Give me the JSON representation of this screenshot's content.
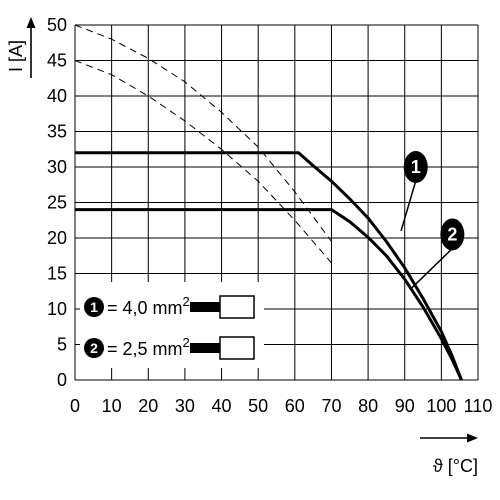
{
  "chart_data": {
    "type": "line",
    "xlabel": "ϑ [°C]",
    "ylabel": "I [A]",
    "xlim": [
      0,
      110
    ],
    "ylim": [
      0,
      50
    ],
    "x_ticks": [
      "0",
      "10",
      "20",
      "30",
      "40",
      "50",
      "60",
      "70",
      "80",
      "90",
      "100",
      "110"
    ],
    "y_ticks": [
      "0",
      "5",
      "10",
      "15",
      "20",
      "25",
      "30",
      "35",
      "40",
      "45",
      "50"
    ],
    "grid": true,
    "series": [
      {
        "id": "1",
        "style": "solid-bold",
        "x": [
          0,
          61,
          65,
          70,
          75,
          80,
          85,
          90,
          95,
          100,
          103,
          105.5
        ],
        "y": [
          32,
          32,
          30.2,
          28,
          25.5,
          22.8,
          19.5,
          15.8,
          11.5,
          6.8,
          3.3,
          0
        ]
      },
      {
        "id": "2",
        "style": "solid-bold",
        "x": [
          0,
          70,
          75,
          80,
          85,
          90,
          95,
          100,
          103,
          105.5
        ],
        "y": [
          24,
          24,
          22.3,
          20.1,
          17.5,
          14.2,
          10.3,
          5.8,
          2.8,
          0
        ]
      },
      {
        "id": "1-limit",
        "style": "dashed",
        "x": [
          0,
          10,
          20,
          30,
          40,
          50,
          60,
          70
        ],
        "y": [
          50,
          48,
          45.3,
          42,
          37.7,
          32.8,
          26.5,
          19.5
        ]
      },
      {
        "id": "2-limit",
        "style": "dashed",
        "x": [
          0,
          10,
          20,
          30,
          40,
          50,
          60,
          70
        ],
        "y": [
          45,
          43,
          40,
          36.5,
          32.5,
          28,
          22.5,
          16.5
        ]
      }
    ],
    "callouts": [
      {
        "label": "1",
        "x": 93,
        "y": 30,
        "target_x": 89,
        "target_y": 21
      },
      {
        "label": "2",
        "x": 103,
        "y": 20.5,
        "target_x": 92,
        "target_y": 13
      }
    ],
    "legend": {
      "placement": "bottom-left",
      "entries": [
        {
          "badge": "1",
          "text": "= 4,0 mm",
          "sup": "2"
        },
        {
          "badge": "2",
          "text": "= 2,5 mm",
          "sup": "2"
        }
      ]
    },
    "colors": {
      "line": "#000000",
      "grid": "#000000",
      "badge": "#000000",
      "background": "#ffffff"
    }
  }
}
